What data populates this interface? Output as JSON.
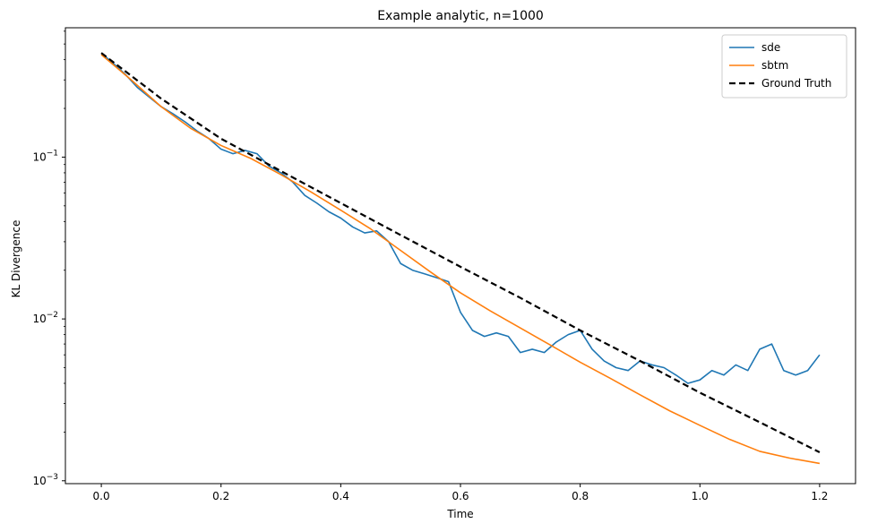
{
  "chart_data": {
    "type": "line",
    "title": "Example analytic, n=1000",
    "xlabel": "Time",
    "ylabel": "KL Divergence",
    "yscale": "log",
    "xlim": [
      -0.06,
      1.26
    ],
    "ylim": [
      0.00096,
      0.63
    ],
    "grid": false,
    "legend_position": "top-right",
    "x_ticks": [
      0.0,
      0.2,
      0.4,
      0.6,
      0.8,
      1.0,
      1.2
    ],
    "x_tick_labels": [
      "0.0",
      "0.2",
      "0.4",
      "0.6",
      "0.8",
      "1.0",
      "1.2"
    ],
    "y_ticks": [
      0.1,
      0.01,
      0.001
    ],
    "y_tick_labels": [
      {
        "base": "10",
        "exp": "−1"
      },
      {
        "base": "10",
        "exp": "−2"
      },
      {
        "base": "10",
        "exp": "−3"
      }
    ],
    "series": [
      {
        "name": "sde",
        "color": "#1f77b4",
        "style": "solid",
        "x": [
          0.0,
          0.02,
          0.04,
          0.06,
          0.08,
          0.1,
          0.12,
          0.14,
          0.16,
          0.18,
          0.2,
          0.22,
          0.24,
          0.26,
          0.28,
          0.3,
          0.32,
          0.34,
          0.36,
          0.38,
          0.4,
          0.42,
          0.44,
          0.46,
          0.48,
          0.5,
          0.52,
          0.54,
          0.56,
          0.58,
          0.6,
          0.62,
          0.64,
          0.66,
          0.68,
          0.7,
          0.72,
          0.74,
          0.76,
          0.78,
          0.8,
          0.82,
          0.84,
          0.86,
          0.88,
          0.9,
          0.92,
          0.94,
          0.96,
          0.98,
          1.0,
          1.02,
          1.04,
          1.06,
          1.08,
          1.1,
          1.12,
          1.14,
          1.16,
          1.18,
          1.2
        ],
        "y": [
          0.44,
          0.38,
          0.325,
          0.27,
          0.235,
          0.205,
          0.185,
          0.165,
          0.145,
          0.13,
          0.112,
          0.105,
          0.11,
          0.105,
          0.088,
          0.08,
          0.07,
          0.058,
          0.052,
          0.046,
          0.042,
          0.037,
          0.034,
          0.035,
          0.03,
          0.022,
          0.02,
          0.019,
          0.018,
          0.017,
          0.011,
          0.0085,
          0.0078,
          0.0082,
          0.0078,
          0.0062,
          0.0065,
          0.0062,
          0.0072,
          0.008,
          0.0085,
          0.0065,
          0.0055,
          0.005,
          0.0048,
          0.0055,
          0.0052,
          0.005,
          0.0045,
          0.004,
          0.0042,
          0.0048,
          0.0045,
          0.0052,
          0.0048,
          0.0065,
          0.007,
          0.0048,
          0.0045,
          0.0048,
          0.006
        ]
      },
      {
        "name": "sbtm",
        "color": "#ff7f0e",
        "style": "solid",
        "x": [
          0.0,
          0.05,
          0.1,
          0.15,
          0.2,
          0.25,
          0.3,
          0.35,
          0.4,
          0.45,
          0.5,
          0.55,
          0.6,
          0.65,
          0.7,
          0.75,
          0.8,
          0.85,
          0.9,
          0.95,
          1.0,
          1.05,
          1.1,
          1.15,
          1.2
        ],
        "y": [
          0.43,
          0.3,
          0.205,
          0.15,
          0.118,
          0.098,
          0.078,
          0.061,
          0.047,
          0.036,
          0.0265,
          0.0195,
          0.0145,
          0.0112,
          0.0088,
          0.0069,
          0.0054,
          0.0043,
          0.0034,
          0.0027,
          0.0022,
          0.0018,
          0.00152,
          0.00138,
          0.00128
        ]
      },
      {
        "name": "Ground Truth",
        "color": "#000000",
        "style": "dashed",
        "x": [
          0.0,
          0.1,
          0.2,
          0.3,
          0.4,
          0.5,
          0.6,
          0.7,
          0.8,
          0.9,
          1.0,
          1.1,
          1.2
        ],
        "y": [
          0.44,
          0.23,
          0.13,
          0.082,
          0.052,
          0.033,
          0.021,
          0.0135,
          0.0085,
          0.0055,
          0.0035,
          0.0023,
          0.0015
        ]
      }
    ]
  }
}
